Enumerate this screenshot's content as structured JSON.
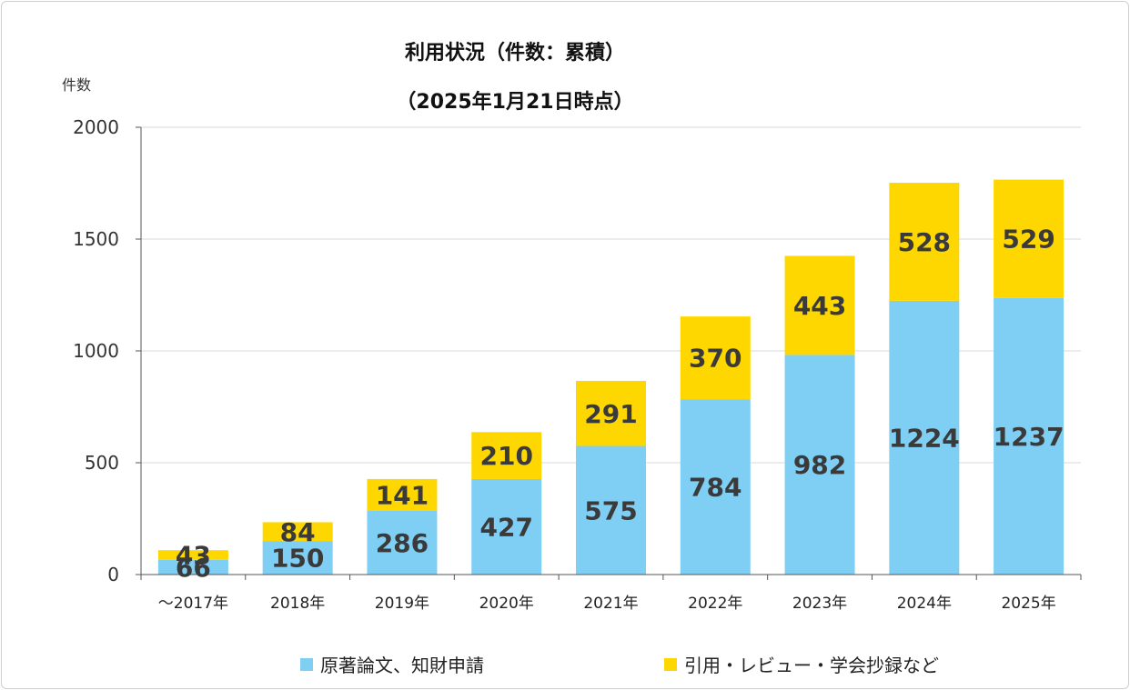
{
  "chart_data": {
    "type": "bar",
    "stacked": true,
    "title": "利用状況（件数：累積）",
    "subtitle": "（2025年1月21日時点）",
    "ylabel": "件数",
    "xlabel": "",
    "ylim": [
      0,
      2000
    ],
    "yticks": [
      0,
      500,
      1000,
      1500,
      2000
    ],
    "grid": true,
    "legend_position": "bottom",
    "categories": [
      "～2017年",
      "2018年",
      "2019年",
      "2020年",
      "2021年",
      "2022年",
      "2023年",
      "2024年",
      "2025年"
    ],
    "series": [
      {
        "name": "原著論文、知財申請",
        "color": "#7fcef4",
        "values": [
          66,
          150,
          286,
          427,
          575,
          784,
          982,
          1224,
          1237
        ]
      },
      {
        "name": "引用・レビュー・学会抄録など",
        "color": "#ffd700",
        "values": [
          43,
          84,
          141,
          210,
          291,
          370,
          443,
          528,
          529
        ]
      }
    ]
  }
}
